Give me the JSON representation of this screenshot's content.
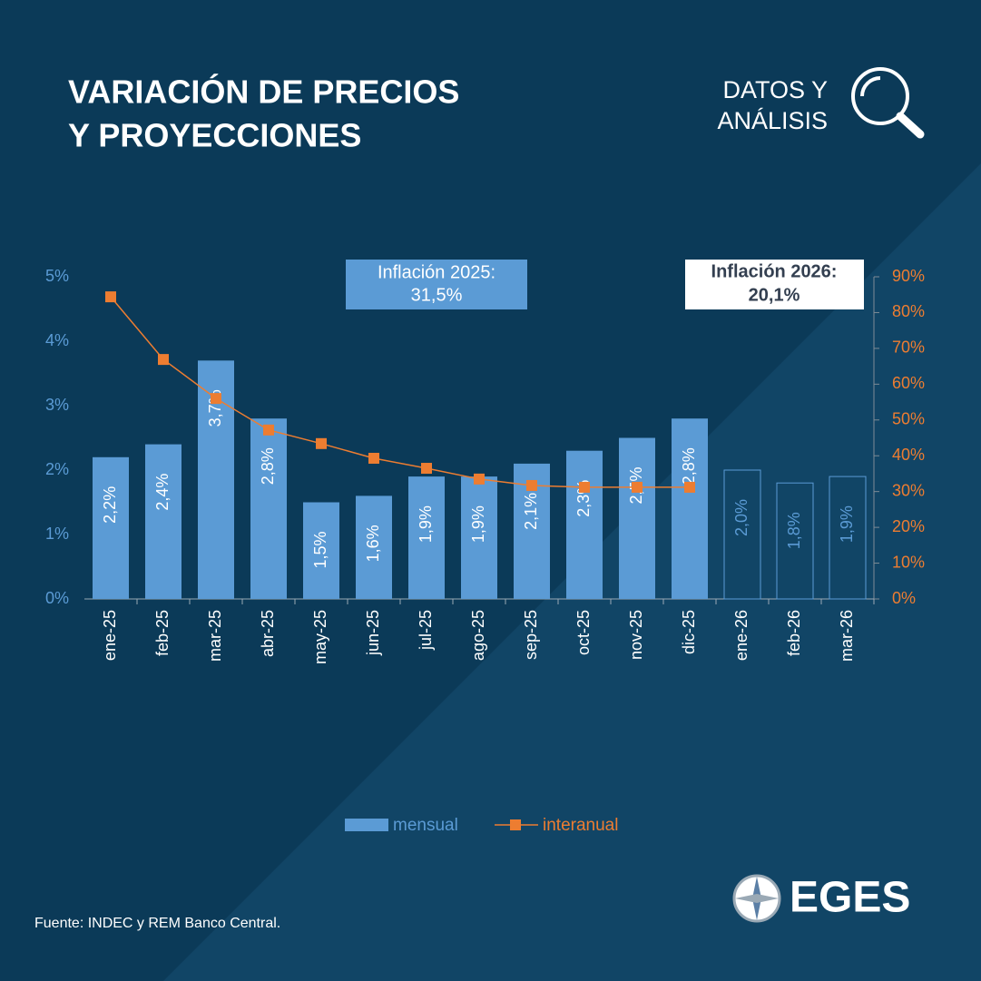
{
  "header": {
    "title": [
      "VARIACIÓN DE PRECIOS",
      "Y PROYECCIONES"
    ],
    "badge": [
      "DATOS Y",
      "ANÁLISIS"
    ]
  },
  "chart_data": {
    "type": "bar",
    "categories": [
      "ene-25",
      "feb-25",
      "mar-25",
      "abr-25",
      "may-25",
      "jun-25",
      "jul-25",
      "ago-25",
      "sep-25",
      "oct-25",
      "nov-25",
      "dic-25",
      "ene-26",
      "feb-26",
      "mar-26"
    ],
    "series": [
      {
        "name": "mensual",
        "type": "bar",
        "color": "#5b9bd5",
        "values": [
          2.2,
          2.4,
          3.7,
          2.8,
          1.5,
          1.6,
          1.9,
          1.9,
          2.1,
          2.3,
          2.5,
          2.8,
          2.0,
          1.8,
          1.9
        ],
        "value_labels": [
          "2,2%",
          "2,4%",
          "3,7%",
          "2,8%",
          "1,5%",
          "1,6%",
          "1,9%",
          "1,9%",
          "2,1%",
          "2,3%",
          "2,5%",
          "2,8%",
          "2,0%",
          "1,8%",
          "1,9%"
        ],
        "outlined": [
          false,
          false,
          false,
          false,
          false,
          false,
          false,
          false,
          false,
          false,
          false,
          false,
          true,
          true,
          true
        ]
      },
      {
        "name": "interanual",
        "type": "line",
        "axis": "y2",
        "color": "#ed7d31",
        "values": [
          84.4,
          66.9,
          56.0,
          47.2,
          43.4,
          39.3,
          36.5,
          33.5,
          31.7,
          31.2,
          31.2,
          31.2,
          null,
          null,
          null
        ]
      }
    ],
    "ylim": [
      0,
      5
    ],
    "yticks": [
      {
        "value": 0,
        "label": "0%"
      },
      {
        "value": 1,
        "label": "1%"
      },
      {
        "value": 2,
        "label": "2%"
      },
      {
        "value": 3,
        "label": "3%"
      },
      {
        "value": 4,
        "label": "4%"
      },
      {
        "value": 5,
        "label": "5%"
      }
    ],
    "y2lim": [
      0,
      90
    ],
    "y2ticks": [
      {
        "value": 0,
        "label": "0%"
      },
      {
        "value": 10,
        "label": "10%"
      },
      {
        "value": 20,
        "label": "20%"
      },
      {
        "value": 30,
        "label": "30%"
      },
      {
        "value": 40,
        "label": "40%"
      },
      {
        "value": 50,
        "label": "50%"
      },
      {
        "value": 60,
        "label": "60%"
      },
      {
        "value": 70,
        "label": "70%"
      },
      {
        "value": 80,
        "label": "80%"
      },
      {
        "value": 90,
        "label": "90%"
      }
    ],
    "annotations": [
      [
        "Inflación 2025:",
        "31,5%"
      ],
      [
        "Inflación 2026:",
        "20,1%"
      ]
    ]
  },
  "footer": {
    "source": "Fuente: INDEC y REM Banco Central.",
    "logo": "EGES"
  }
}
